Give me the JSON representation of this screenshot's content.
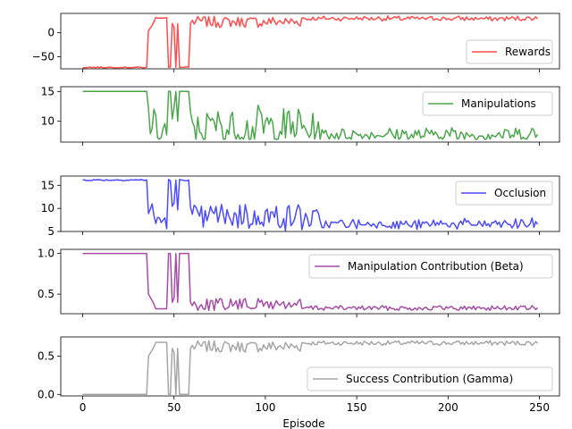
{
  "chart_data": [
    {
      "type": "line",
      "panel": "rewards",
      "series": [
        {
          "name": "Rewards",
          "color": "#ff0000",
          "values": []
        }
      ],
      "ylim": [
        -75,
        40
      ],
      "yticks": [
        0,
        -50
      ],
      "ytick_labels": [
        "0",
        "−50"
      ],
      "legend_placement": "bottom-right"
    },
    {
      "type": "line",
      "panel": "manipulations",
      "series": [
        {
          "name": "Manipulations",
          "color": "#008000",
          "values": []
        }
      ],
      "ylim": [
        6.5,
        15.8
      ],
      "yticks": [
        15,
        10
      ],
      "ytick_labels": [
        "15",
        "10"
      ],
      "legend_placement": "top-right"
    },
    {
      "type": "line",
      "panel": "occlusion",
      "series": [
        {
          "name": "Occlusion",
          "color": "#0000ff",
          "values": []
        }
      ],
      "ylim": [
        5,
        17
      ],
      "yticks": [
        15,
        10,
        5
      ],
      "ytick_labels": [
        "15",
        "10",
        "5"
      ],
      "legend_placement": "top-right"
    },
    {
      "type": "line",
      "panel": "beta",
      "series": [
        {
          "name": "Manipulation Contribution (Beta)",
          "color": "#800080",
          "values": []
        }
      ],
      "ylim": [
        0.26,
        1.05
      ],
      "yticks": [
        1.0,
        0.5
      ],
      "ytick_labels": [
        "1.0",
        "0.5"
      ],
      "legend_placement": "top-right"
    },
    {
      "type": "line",
      "panel": "gamma",
      "series": [
        {
          "name": "Success Contribution (Gamma)",
          "color": "#808080",
          "values": []
        }
      ],
      "ylim": [
        -0.02,
        0.75
      ],
      "yticks": [
        0.5,
        0.0
      ],
      "ytick_labels": [
        "0.5",
        "0.0"
      ],
      "legend_placement": "bottom-right"
    }
  ],
  "shared": {
    "episodes": {
      "start": 0,
      "end": 249
    },
    "xlim": [
      -12,
      261
    ],
    "xticks": [
      0,
      50,
      100,
      150,
      200,
      250
    ],
    "xtick_labels": [
      "0",
      "50",
      "100",
      "150",
      "200",
      "250"
    ],
    "xlabel": "Episode"
  }
}
